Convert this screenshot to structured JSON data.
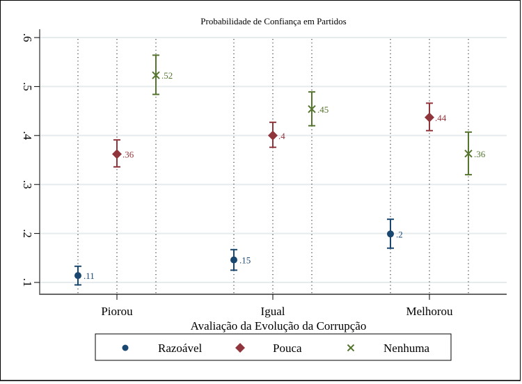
{
  "chart_data": {
    "type": "scatter",
    "subtype": "point-estimates-with-confidence-intervals",
    "title": "Probabilidade de Confiança em Partidos",
    "xlabel": "Avaliação da Evolução da Corrupção",
    "ylabel": "",
    "categories": [
      "Piorou",
      "Igual",
      "Melhorou"
    ],
    "ylim": [
      0.1,
      0.6
    ],
    "yticks": [
      0.1,
      0.2,
      0.3,
      0.4,
      0.5,
      0.6
    ],
    "ytick_labels": [
      ".1",
      ".2",
      ".3",
      ".4",
      ".5",
      ".6"
    ],
    "grid": true,
    "legend_position": "bottom",
    "series": [
      {
        "name": "Razoável",
        "marker": "circle",
        "color": "#1a476f",
        "values": [
          0.114,
          0.146,
          0.199
        ],
        "labels": [
          ".11",
          ".15",
          ".2"
        ],
        "ci_low": [
          0.095,
          0.125,
          0.17
        ],
        "ci_high": [
          0.133,
          0.167,
          0.229
        ]
      },
      {
        "name": "Pouca",
        "marker": "diamond",
        "color": "#90353b",
        "values": [
          0.362,
          0.4,
          0.437
        ],
        "labels": [
          ".36",
          ".4",
          ".44"
        ],
        "ci_low": [
          0.336,
          0.376,
          0.41
        ],
        "ci_high": [
          0.391,
          0.427,
          0.466
        ]
      },
      {
        "name": "Nenhuma",
        "marker": "x",
        "color": "#55752f",
        "values": [
          0.523,
          0.454,
          0.363
        ],
        "labels": [
          ".52",
          ".45",
          ".36"
        ],
        "ci_low": [
          0.484,
          0.42,
          0.32
        ],
        "ci_high": [
          0.564,
          0.489,
          0.407
        ]
      }
    ]
  }
}
